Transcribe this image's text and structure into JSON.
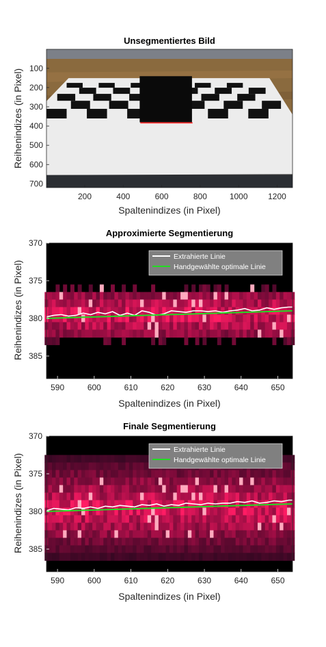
{
  "chart_data": [
    {
      "type": "image",
      "title": "Unsegmentiertes Bild",
      "xlabel": "Spaltenindizes (in Pixel)",
      "ylabel": "Reihenindizes (in Pixel)",
      "xlim": [
        1,
        1280
      ],
      "ylim": [
        1,
        720
      ],
      "xticks": [
        200,
        400,
        600,
        800,
        1000,
        1200
      ],
      "yticks": [
        100,
        200,
        300,
        400,
        500,
        600,
        700
      ],
      "y_reversed": true,
      "image_description": "Photo of a black-and-white checkerboard on a table with a black box standing on it",
      "extracted_line": {
        "x": [
          488,
          760
        ],
        "y": [
          383,
          383
        ],
        "color": "#ff2020"
      },
      "colors": {
        "wood": "#8a6a3e",
        "wall": "#7c8088",
        "board": "#ececec",
        "box": "#0a0a0a"
      }
    },
    {
      "type": "heatmap",
      "title": "Approximierte Segmentierung",
      "xlabel": "Spaltenindizes (in Pixel)",
      "ylabel": "Reihenindizes (in Pixel)",
      "xlim": [
        587,
        654
      ],
      "ylim": [
        370,
        388
      ],
      "xticks": [
        590,
        600,
        610,
        620,
        630,
        640,
        650
      ],
      "yticks": [
        370,
        375,
        380,
        385
      ],
      "y_reversed": true,
      "band_rows": [
        377,
        382
      ],
      "legend_position": "top-right",
      "series": [
        {
          "name": "Extrahierte Linie",
          "color": "#ffffff",
          "x": [
            587,
            589,
            591,
            593,
            595,
            597,
            599,
            601,
            603,
            605,
            607,
            609,
            611,
            613,
            615,
            617,
            619,
            621,
            623,
            625,
            627,
            629,
            631,
            633,
            635,
            637,
            639,
            641,
            643,
            645,
            647,
            649,
            651,
            653,
            654
          ],
          "y": [
            379.8,
            379.6,
            379.5,
            379.7,
            379.6,
            379.3,
            379.5,
            379.2,
            379.4,
            379.1,
            379.6,
            379.3,
            379.6,
            379.0,
            379.2,
            379.6,
            379.4,
            379.0,
            379.1,
            379.2,
            379.0,
            379.0,
            379.1,
            379.0,
            379.2,
            379.0,
            378.9,
            378.7,
            379.0,
            378.9,
            378.6,
            378.8,
            378.6,
            378.5,
            378.5
          ]
        },
        {
          "name": "Handgewählte optimale Linie",
          "color": "#22dd22",
          "x": [
            587,
            654
          ],
          "y": [
            380.0,
            379.0
          ]
        }
      ]
    },
    {
      "type": "heatmap",
      "title": "Finale Segmentierung",
      "xlabel": "Spaltenindizes (in Pixel)",
      "ylabel": "Reihenindizes (in Pixel)",
      "xlim": [
        587,
        654
      ],
      "ylim": [
        370,
        388
      ],
      "xticks": [
        590,
        600,
        610,
        620,
        630,
        640,
        650
      ],
      "yticks": [
        370,
        375,
        380,
        385
      ],
      "y_reversed": true,
      "band_rows": [
        373,
        386
      ],
      "legend_position": "top-right",
      "series": [
        {
          "name": "Extrahierte Linie",
          "color": "#ffffff",
          "x": [
            587,
            589,
            591,
            593,
            595,
            597,
            599,
            601,
            603,
            605,
            607,
            609,
            611,
            613,
            615,
            617,
            619,
            621,
            623,
            625,
            627,
            629,
            631,
            633,
            635,
            637,
            639,
            641,
            643,
            645,
            647,
            649,
            651,
            653,
            654
          ],
          "y": [
            379.9,
            379.6,
            379.7,
            379.8,
            379.5,
            379.6,
            379.4,
            379.6,
            379.3,
            379.4,
            379.2,
            379.3,
            379.4,
            379.1,
            379.2,
            379.0,
            379.3,
            379.1,
            379.2,
            378.9,
            379.0,
            379.1,
            378.9,
            379.0,
            378.9,
            378.9,
            378.7,
            378.8,
            378.6,
            378.9,
            378.8,
            378.6,
            378.7,
            378.5,
            378.5
          ]
        },
        {
          "name": "Handgewählte optimale Linie",
          "color": "#22dd22",
          "x": [
            587,
            654
          ],
          "y": [
            380.0,
            379.0
          ]
        }
      ]
    }
  ]
}
